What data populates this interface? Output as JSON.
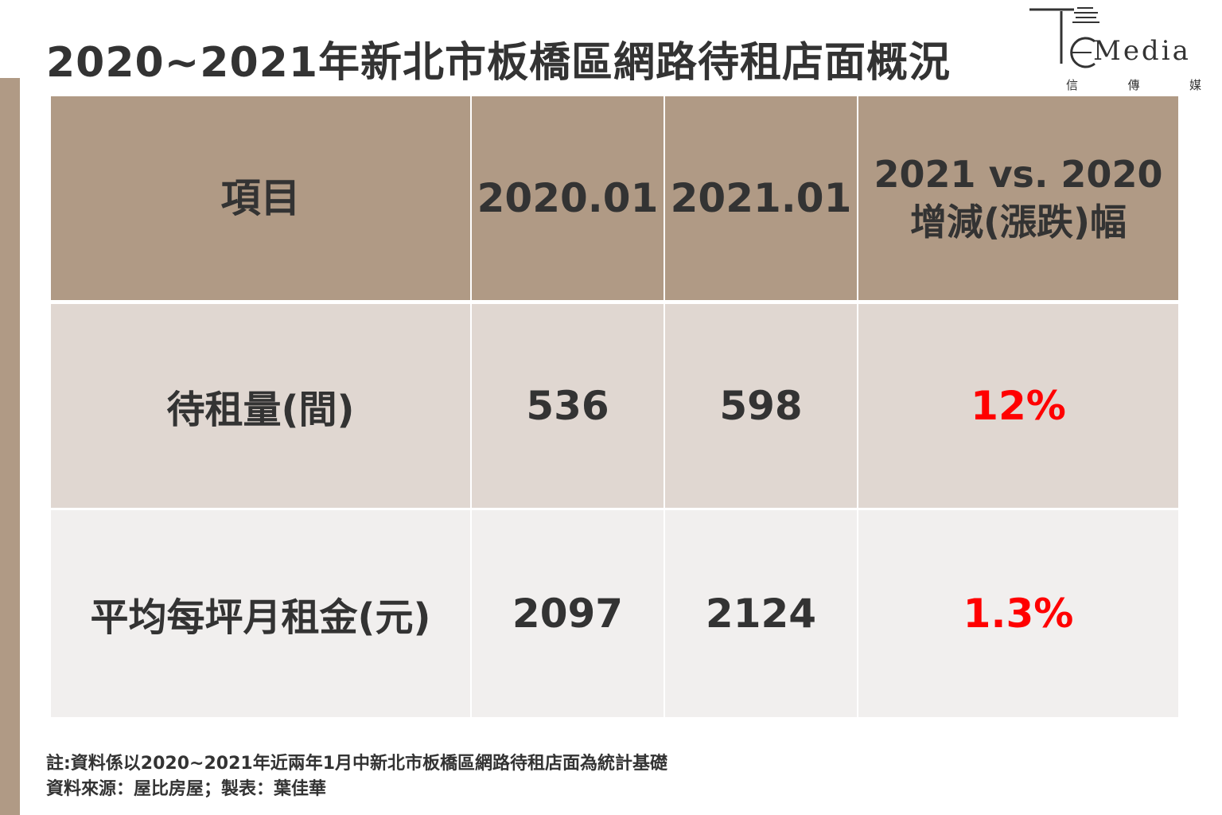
{
  "title": "2020~2021年新北市板橋區網路待租店面概況",
  "logo": {
    "word": "Media",
    "subtitle": [
      "信",
      "傳",
      "媒"
    ]
  },
  "chart_data": {
    "type": "table",
    "columns": [
      "項目",
      "2020.01",
      "2021.01",
      "2021 vs. 2020 增減(漲跌)幅"
    ],
    "header_change_lines": [
      "2021 vs. 2020",
      "增減(漲跌)幅"
    ],
    "rows": [
      {
        "label": "待租量(間)",
        "y2020": "536",
        "y2021": "598",
        "change": "12%"
      },
      {
        "label": "平均每坪月租金(元)",
        "y2020": "2097",
        "y2021": "2124",
        "change": "1.3%"
      }
    ]
  },
  "notes": {
    "line1": "註:資料係以2020~2021年近兩年1月中新北市板橋區網路待租店面為統計基礎",
    "line2": "資料來源：屋比房屋；製表：葉佳華"
  },
  "colors": {
    "header_bg": "#b09a85",
    "row1_bg": "#e0d7d1",
    "row2_bg": "#f1efee",
    "change_text": "#ff0000",
    "side_bar": "#b09a85"
  }
}
